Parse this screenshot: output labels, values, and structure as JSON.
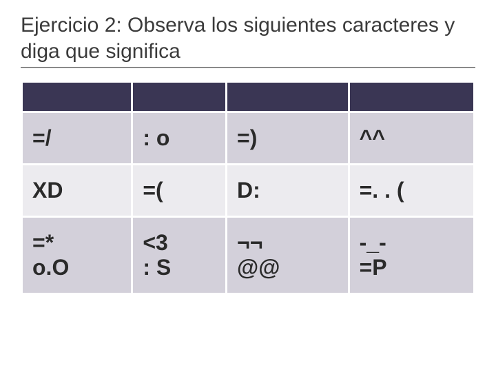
{
  "title": "Ejercicio 2: Observa los siguientes caracteres y diga que significa",
  "table": {
    "header_bg": "#3a3654",
    "row_a_bg": "#d3d0da",
    "row_b_bg": "#ecebef",
    "border_color": "#ffffff",
    "cell_fontsize": 32,
    "cell_fontweight": 700,
    "columns": 4,
    "rows": [
      [
        "=/",
        ": o",
        "=)",
        "^^"
      ],
      [
        "XD",
        "=(",
        "D:",
        "=. . ("
      ],
      [
        "=*",
        "<3",
        "¬¬",
        "-_-"
      ],
      [
        "o.O",
        ": S",
        "@@",
        "=P"
      ]
    ]
  }
}
